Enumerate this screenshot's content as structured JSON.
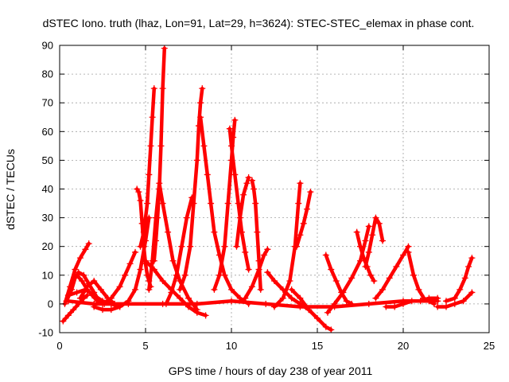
{
  "chart_data": {
    "type": "scatter",
    "title": "dSTEC Iono. truth (lhaz, Lon=91, Lat=29, h=3624): STEC-STEC_elemax in phase cont.",
    "xlabel": "GPS time / hours of day 238 of year 2011",
    "ylabel": "dSTEC  / TECUs",
    "xlim": [
      0,
      25
    ],
    "ylim": [
      -10,
      90
    ],
    "xticks": [
      0,
      5,
      10,
      15,
      20,
      25
    ],
    "yticks": [
      -10,
      0,
      10,
      20,
      30,
      40,
      50,
      60,
      70,
      80,
      90
    ],
    "grid": true,
    "marker": "+",
    "color": "#ff0000",
    "series": [
      {
        "x": [
          0.3,
          0.6,
          0.9,
          1.2,
          1.5,
          1.7
        ],
        "y": [
          0,
          6,
          12,
          16,
          19,
          21
        ]
      },
      {
        "x": [
          0.2,
          0.5,
          0.8,
          1.1,
          1.4,
          1.6
        ],
        "y": [
          -6,
          -4,
          -2,
          0,
          2,
          3
        ]
      },
      {
        "x": [
          0.4,
          0.7,
          0.9,
          1.1,
          1.4,
          1.7,
          2.0,
          2.3
        ],
        "y": [
          1,
          5,
          9,
          11,
          10,
          7,
          4,
          1
        ]
      },
      {
        "x": [
          0.5,
          1.0,
          1.5,
          2.0,
          2.5,
          3.0,
          3.5
        ],
        "y": [
          3,
          4,
          5,
          3,
          1,
          0,
          -1
        ]
      },
      {
        "x": [
          1.0,
          1.3,
          1.6,
          1.9,
          2.2,
          2.6,
          3.0
        ],
        "y": [
          10,
          8,
          5,
          3,
          1,
          0,
          0
        ]
      },
      {
        "x": [
          1.2,
          1.6,
          2.0,
          2.4,
          2.8,
          3.2
        ],
        "y": [
          2,
          6,
          8,
          5,
          2,
          0
        ]
      },
      {
        "x": [
          2.0,
          2.5,
          3.0,
          3.5,
          4.0,
          4.4,
          4.7,
          5.0,
          5.2
        ],
        "y": [
          -1,
          -2,
          -2,
          -1,
          1,
          5,
          12,
          22,
          30
        ]
      },
      {
        "x": [
          2.5,
          3.0,
          3.5,
          3.8,
          4.1,
          4.4
        ],
        "y": [
          0,
          2,
          6,
          10,
          14,
          18
        ]
      },
      {
        "x": [
          4.5,
          4.6,
          4.7,
          4.8,
          4.9,
          5.0,
          5.1,
          5.2,
          5.3
        ],
        "y": [
          40,
          39,
          36,
          28,
          20,
          14,
          10,
          8,
          6
        ]
      },
      {
        "x": [
          4.7,
          4.9,
          5.1,
          5.2,
          5.3,
          5.4,
          5.5
        ],
        "y": [
          20,
          25,
          35,
          45,
          55,
          65,
          75
        ]
      },
      {
        "x": [
          5.5,
          5.6,
          5.7,
          5.8,
          5.9,
          6.0,
          6.1
        ],
        "y": [
          15,
          22,
          30,
          40,
          55,
          75,
          89
        ]
      },
      {
        "x": [
          5.2,
          5.4,
          5.6,
          5.8,
          6.0,
          6.3,
          6.6,
          7.0,
          7.5,
          8.0
        ],
        "y": [
          5,
          15,
          30,
          42,
          35,
          25,
          15,
          8,
          2,
          -2
        ]
      },
      {
        "x": [
          5.0,
          5.5,
          6.0,
          6.5,
          7.0,
          7.5,
          8.0,
          8.5
        ],
        "y": [
          15,
          12,
          8,
          5,
          2,
          -1,
          -3,
          -4
        ]
      },
      {
        "x": [
          6.2,
          6.5,
          6.8,
          7.1,
          7.4,
          7.7
        ],
        "y": [
          0,
          4,
          10,
          20,
          30,
          37
        ]
      },
      {
        "x": [
          7.0,
          7.3,
          7.6,
          7.8,
          8.0,
          8.1,
          8.2,
          8.3
        ],
        "y": [
          5,
          10,
          20,
          35,
          50,
          62,
          70,
          75
        ]
      },
      {
        "x": [
          8.2,
          8.4,
          8.6,
          8.8,
          9.0,
          9.3,
          9.6,
          10.0,
          10.5,
          11.0
        ],
        "y": [
          65,
          55,
          45,
          35,
          25,
          17,
          10,
          5,
          2,
          0
        ]
      },
      {
        "x": [
          9.0,
          9.3,
          9.6,
          9.8,
          10.0,
          10.1,
          10.2
        ],
        "y": [
          5,
          10,
          20,
          35,
          50,
          58,
          64
        ]
      },
      {
        "x": [
          9.9,
          10.0,
          10.2,
          10.4,
          10.6,
          10.8,
          11.0
        ],
        "y": [
          61,
          55,
          45,
          35,
          25,
          18,
          12
        ]
      },
      {
        "x": [
          10.3,
          10.5,
          10.7,
          10.9,
          11.0
        ],
        "y": [
          20,
          30,
          38,
          42,
          44
        ]
      },
      {
        "x": [
          11.2,
          11.3,
          11.4,
          11.5,
          11.6,
          11.7
        ],
        "y": [
          43,
          40,
          35,
          25,
          15,
          5
        ]
      },
      {
        "x": [
          10.8,
          11.2,
          11.6,
          11.9,
          12.1
        ],
        "y": [
          2,
          6,
          12,
          17,
          19
        ]
      },
      {
        "x": [
          12.1,
          12.5,
          13.0,
          13.5,
          14.0,
          14.5
        ],
        "y": [
          11,
          8,
          5,
          2,
          0,
          -2
        ]
      },
      {
        "x": [
          12.5,
          13.0,
          13.4,
          13.7,
          13.9,
          14.0
        ],
        "y": [
          -1,
          2,
          8,
          20,
          35,
          42
        ]
      },
      {
        "x": [
          13.8,
          14.0,
          14.2,
          14.4,
          14.6
        ],
        "y": [
          20,
          24,
          28,
          33,
          39
        ]
      },
      {
        "x": [
          13.5,
          14.0,
          14.5,
          15.0,
          15.5,
          15.8
        ],
        "y": [
          5,
          2,
          -2,
          -5,
          -8,
          -9
        ]
      },
      {
        "x": [
          15.5,
          15.8,
          16.1,
          16.4,
          16.7,
          17.0
        ],
        "y": [
          17,
          12,
          8,
          4,
          1,
          0
        ]
      },
      {
        "x": [
          15.6,
          16.0,
          16.5,
          17.0,
          17.5,
          17.8,
          18.0
        ],
        "y": [
          -3,
          0,
          4,
          9,
          15,
          22,
          27
        ]
      },
      {
        "x": [
          17.3,
          17.5,
          17.7,
          17.9,
          18.1,
          18.3
        ],
        "y": [
          25,
          20,
          16,
          13,
          10,
          8
        ]
      },
      {
        "x": [
          17.8,
          18.0,
          18.2,
          18.4,
          18.6,
          18.8
        ],
        "y": [
          13,
          18,
          24,
          30,
          28,
          22
        ]
      },
      {
        "x": [
          18.4,
          18.8,
          19.2,
          19.6,
          20.0,
          20.3
        ],
        "y": [
          2,
          5,
          9,
          13,
          17,
          20
        ]
      },
      {
        "x": [
          20.3,
          20.6,
          20.9,
          21.2,
          21.5,
          21.8
        ],
        "y": [
          18,
          10,
          5,
          2,
          1,
          0
        ]
      },
      {
        "x": [
          19.0,
          19.5,
          20.0,
          20.5,
          21.0,
          21.5,
          22.0
        ],
        "y": [
          -1,
          -1,
          0,
          1,
          1,
          2,
          2
        ]
      },
      {
        "x": [
          22.5,
          23.0,
          23.3,
          23.6,
          23.8,
          24.0
        ],
        "y": [
          1,
          2,
          5,
          9,
          13,
          16
        ]
      },
      {
        "x": [
          22.0,
          22.5,
          23.0,
          23.5,
          24.0
        ],
        "y": [
          -1,
          -1,
          0,
          1,
          4
        ]
      },
      {
        "x": [
          0.5,
          2.0,
          4.0,
          6.0,
          8.0,
          10.0,
          12.0,
          14.0,
          16.0,
          18.0,
          20.0,
          22.0
        ],
        "y": [
          1,
          0,
          0,
          0,
          0,
          1,
          0,
          -1,
          -1,
          0,
          1,
          1
        ]
      }
    ]
  }
}
